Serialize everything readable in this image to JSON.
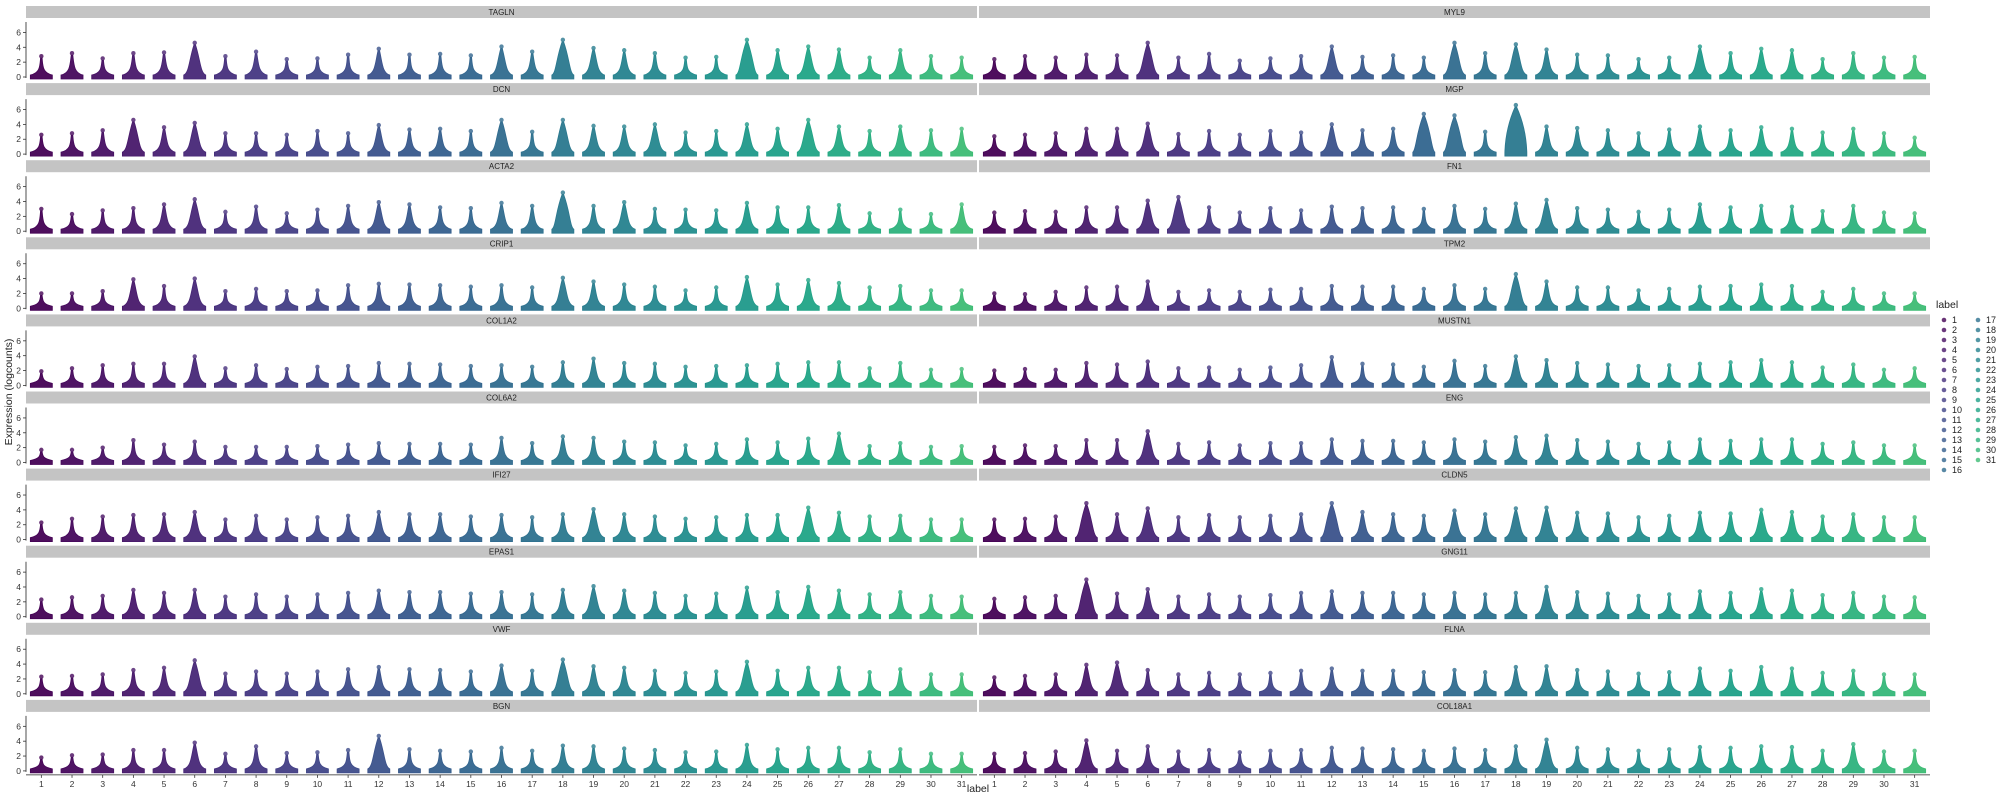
{
  "chart_data": {
    "type": "violin",
    "xlabel": "label",
    "ylabel": "Expression (logcounts)",
    "ylim": [
      0,
      7
    ],
    "yticks": [
      0,
      2,
      4,
      6
    ],
    "categories": [
      "1",
      "2",
      "3",
      "4",
      "5",
      "6",
      "7",
      "8",
      "9",
      "10",
      "11",
      "12",
      "13",
      "14",
      "15",
      "16",
      "17",
      "18",
      "19",
      "20",
      "21",
      "22",
      "23",
      "24",
      "25",
      "26",
      "27",
      "28",
      "29",
      "30",
      "31"
    ],
    "legend": {
      "title": "label",
      "placement": "right"
    },
    "colors": [
      "#440154",
      "#46085c",
      "#471063",
      "#48186a",
      "#482071",
      "#472777",
      "#462f7c",
      "#443782",
      "#433e85",
      "#404688",
      "#3e4c8a",
      "#3b528b",
      "#38598c",
      "#355f8d",
      "#32658e",
      "#306b8e",
      "#2d718e",
      "#2a788e",
      "#287d8e",
      "#26828e",
      "#24878e",
      "#228d8d",
      "#20938c",
      "#1f998a",
      "#1fa088",
      "#20a486",
      "#23a983",
      "#28ae80",
      "#2db27d",
      "#35b779",
      "#3dbc74"
    ],
    "panels": [
      {
        "gene": "TAGLN",
        "max": [
          2.8,
          3.2,
          2.5,
          3.2,
          3.3,
          4.6,
          2.8,
          3.4,
          2.4,
          2.5,
          3.0,
          3.8,
          3.0,
          3.1,
          2.9,
          4.1,
          3.4,
          5.0,
          3.9,
          3.6,
          3.2,
          2.6,
          2.7,
          5.0,
          3.6,
          4.1,
          3.7,
          2.6,
          3.6,
          2.8,
          2.6
        ]
      },
      {
        "gene": "MYL9",
        "max": [
          2.4,
          2.8,
          2.6,
          3.0,
          2.9,
          4.6,
          2.6,
          3.1,
          2.2,
          2.5,
          2.8,
          4.1,
          2.7,
          2.9,
          2.6,
          4.6,
          3.2,
          4.4,
          3.7,
          3.0,
          2.9,
          2.4,
          2.6,
          4.1,
          3.2,
          3.8,
          3.6,
          2.4,
          3.2,
          2.6,
          2.7
        ]
      },
      {
        "gene": "DCN",
        "max": [
          2.6,
          2.8,
          3.2,
          4.6,
          3.6,
          4.2,
          2.8,
          2.8,
          2.6,
          3.1,
          2.8,
          3.9,
          3.3,
          3.4,
          3.1,
          4.6,
          3.0,
          4.6,
          3.8,
          3.7,
          4.0,
          2.9,
          3.1,
          4.0,
          3.4,
          4.6,
          3.7,
          3.1,
          3.7,
          3.2,
          3.4
        ]
      },
      {
        "gene": "MGP",
        "max": [
          2.4,
          2.6,
          2.8,
          3.4,
          3.4,
          4.1,
          2.7,
          3.1,
          2.6,
          3.1,
          2.9,
          4.0,
          3.2,
          3.4,
          5.4,
          5.2,
          3.0,
          6.6,
          3.7,
          3.5,
          3.2,
          2.8,
          3.3,
          3.7,
          3.2,
          3.6,
          3.4,
          2.9,
          3.4,
          2.8,
          2.2
        ]
      },
      {
        "gene": "ACTA2",
        "max": [
          3.0,
          2.3,
          2.8,
          3.1,
          3.6,
          4.3,
          2.6,
          3.3,
          2.4,
          2.9,
          3.4,
          3.9,
          3.6,
          3.2,
          3.1,
          3.8,
          3.4,
          5.2,
          3.4,
          3.9,
          3.0,
          2.9,
          2.8,
          3.8,
          3.2,
          3.2,
          3.5,
          2.4,
          2.9,
          2.3,
          3.6
        ]
      },
      {
        "gene": "FN1",
        "max": [
          2.5,
          2.7,
          2.6,
          3.2,
          3.2,
          4.1,
          4.6,
          3.2,
          2.5,
          3.1,
          2.8,
          3.3,
          3.1,
          3.2,
          3.0,
          3.4,
          3.0,
          3.7,
          4.2,
          3.1,
          2.9,
          2.6,
          2.9,
          3.6,
          3.2,
          3.4,
          3.3,
          2.7,
          3.4,
          2.5,
          2.4
        ]
      },
      {
        "gene": "CRIP1",
        "max": [
          2.0,
          2.0,
          2.3,
          3.9,
          3.0,
          4.0,
          2.3,
          2.6,
          2.3,
          2.4,
          3.1,
          3.3,
          3.2,
          3.1,
          2.9,
          3.1,
          2.8,
          4.1,
          3.6,
          3.2,
          2.9,
          2.4,
          2.8,
          4.2,
          3.2,
          3.8,
          3.4,
          2.8,
          3.0,
          2.4,
          2.4
        ]
      },
      {
        "gene": "TPM2",
        "max": [
          2.0,
          1.9,
          2.2,
          2.8,
          2.9,
          3.6,
          2.2,
          2.4,
          2.2,
          2.5,
          2.6,
          3.0,
          2.9,
          2.9,
          2.6,
          3.1,
          2.6,
          4.6,
          3.6,
          2.8,
          2.8,
          2.4,
          2.6,
          2.9,
          3.0,
          3.2,
          3.0,
          2.2,
          2.6,
          2.0,
          2.0
        ]
      },
      {
        "gene": "COL1A2",
        "max": [
          1.9,
          2.3,
          2.7,
          2.9,
          2.9,
          3.9,
          2.3,
          2.7,
          2.2,
          2.5,
          2.6,
          3.0,
          2.9,
          2.8,
          2.6,
          2.7,
          2.5,
          3.1,
          3.6,
          3.0,
          2.9,
          2.5,
          2.6,
          2.7,
          2.9,
          3.1,
          3.1,
          2.3,
          3.0,
          2.1,
          2.2
        ]
      },
      {
        "gene": "MUSTN1",
        "max": [
          2.0,
          2.2,
          2.1,
          3.0,
          2.8,
          3.2,
          2.3,
          2.4,
          2.1,
          2.4,
          2.7,
          3.8,
          2.9,
          2.8,
          2.5,
          3.3,
          2.6,
          3.9,
          3.4,
          3.0,
          2.8,
          2.6,
          2.7,
          2.9,
          3.1,
          3.4,
          3.1,
          2.4,
          2.8,
          2.1,
          2.3
        ]
      },
      {
        "gene": "COL6A2",
        "max": [
          1.7,
          1.7,
          2.0,
          3.0,
          2.4,
          2.8,
          2.1,
          2.1,
          2.1,
          2.2,
          2.4,
          2.6,
          2.5,
          2.5,
          2.4,
          3.3,
          2.6,
          3.5,
          3.3,
          2.8,
          2.7,
          2.3,
          2.5,
          3.1,
          2.7,
          3.2,
          3.9,
          2.2,
          2.6,
          2.1,
          2.2
        ]
      },
      {
        "gene": "ENG",
        "max": [
          2.1,
          2.3,
          2.2,
          3.0,
          3.0,
          4.2,
          2.5,
          2.7,
          2.3,
          2.6,
          2.6,
          3.1,
          2.9,
          2.9,
          2.7,
          3.1,
          2.8,
          3.4,
          3.6,
          3.0,
          2.8,
          2.5,
          2.7,
          3.1,
          2.9,
          3.1,
          3.1,
          2.5,
          2.7,
          2.3,
          2.3
        ]
      },
      {
        "gene": "IFI27",
        "max": [
          2.3,
          2.8,
          3.1,
          3.3,
          3.4,
          3.7,
          2.7,
          3.2,
          2.7,
          3.0,
          3.2,
          3.7,
          3.4,
          3.4,
          3.1,
          3.3,
          3.0,
          3.4,
          4.1,
          3.4,
          3.1,
          2.8,
          3.0,
          3.3,
          3.3,
          4.3,
          3.6,
          3.1,
          3.2,
          2.7,
          2.7
        ]
      },
      {
        "gene": "CLDN5",
        "max": [
          2.7,
          2.8,
          3.1,
          4.9,
          3.4,
          4.2,
          3.0,
          3.3,
          3.0,
          3.2,
          3.4,
          4.9,
          3.7,
          3.4,
          3.2,
          3.9,
          3.4,
          4.2,
          4.3,
          3.6,
          3.5,
          3.0,
          3.2,
          3.6,
          3.5,
          4.0,
          3.7,
          3.1,
          3.4,
          3.0,
          3.0
        ]
      },
      {
        "gene": "EPAS1",
        "max": [
          2.3,
          2.6,
          2.8,
          3.6,
          3.2,
          3.6,
          2.7,
          3.0,
          2.7,
          3.0,
          3.2,
          3.5,
          3.3,
          3.3,
          3.1,
          3.3,
          3.0,
          3.6,
          4.1,
          3.5,
          3.2,
          2.8,
          3.1,
          3.9,
          3.3,
          4.0,
          3.5,
          3.0,
          3.3,
          2.8,
          2.7
        ]
      },
      {
        "gene": "GNG11",
        "max": [
          2.4,
          2.6,
          2.8,
          5.0,
          3.1,
          3.7,
          2.7,
          3.0,
          2.7,
          2.9,
          3.2,
          3.4,
          3.2,
          3.2,
          3.0,
          3.2,
          3.0,
          3.2,
          4.0,
          3.3,
          3.1,
          2.8,
          3.0,
          3.4,
          3.2,
          3.7,
          3.5,
          2.9,
          3.2,
          2.7,
          2.6
        ]
      },
      {
        "gene": "VWF",
        "max": [
          2.3,
          2.4,
          2.6,
          3.2,
          3.5,
          4.5,
          2.7,
          3.0,
          2.7,
          3.0,
          3.3,
          3.6,
          3.3,
          3.2,
          3.0,
          3.8,
          3.1,
          4.6,
          3.7,
          3.5,
          3.1,
          2.8,
          3.0,
          4.3,
          3.1,
          3.5,
          3.5,
          2.9,
          3.3,
          2.6,
          2.6
        ]
      },
      {
        "gene": "FLNA",
        "max": [
          2.2,
          2.4,
          2.6,
          3.9,
          4.2,
          3.2,
          2.6,
          2.8,
          2.6,
          2.8,
          3.1,
          3.4,
          3.1,
          3.1,
          2.9,
          3.2,
          2.9,
          3.6,
          3.7,
          3.2,
          3.0,
          2.7,
          2.9,
          3.4,
          3.1,
          3.6,
          3.4,
          2.8,
          3.1,
          2.6,
          2.6
        ]
      },
      {
        "gene": "BGN",
        "max": [
          1.8,
          2.1,
          2.2,
          2.8,
          2.8,
          3.8,
          2.3,
          3.3,
          2.4,
          2.5,
          2.8,
          4.7,
          2.9,
          2.7,
          2.6,
          3.1,
          2.7,
          3.4,
          3.3,
          3.0,
          2.8,
          2.5,
          2.6,
          3.5,
          2.9,
          3.1,
          3.1,
          2.5,
          2.9,
          2.3,
          2.3
        ]
      },
      {
        "gene": "COL18A1",
        "max": [
          2.3,
          2.4,
          2.6,
          4.1,
          2.7,
          3.3,
          2.6,
          2.8,
          2.5,
          2.7,
          2.8,
          3.1,
          3.0,
          2.9,
          2.7,
          3.0,
          2.8,
          3.3,
          4.2,
          3.1,
          2.9,
          2.7,
          2.9,
          3.2,
          3.1,
          3.3,
          3.2,
          2.7,
          3.6,
          2.6,
          2.7
        ]
      }
    ]
  }
}
